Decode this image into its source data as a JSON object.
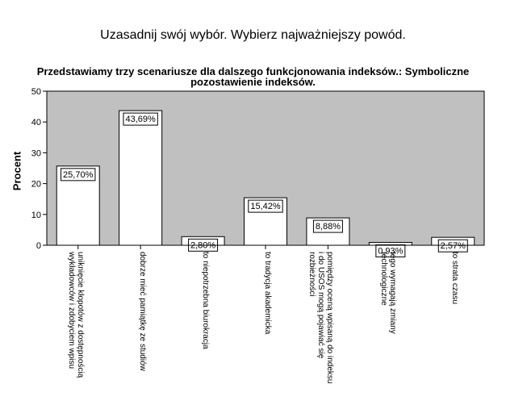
{
  "page_title": "Uzasadnij swój wybór. Wybierz najważniejszy powód.",
  "chart_data": {
    "type": "bar",
    "title": "Przedstawiamy trzy scenariusze dla dalszego funkcjonowania indeksów.: Symboliczne pozostawienie indeksów.",
    "ylabel": "Procent",
    "xlabel": "",
    "ylim": [
      0,
      50
    ],
    "yticks": [
      0,
      10,
      20,
      30,
      40,
      50
    ],
    "grid": false,
    "background": "#c0c0c0",
    "bar_color": "#ffffff",
    "categories": [
      "uniknięcie kłopotów z dostępnością wykładowców i zdobyciem wpisu",
      "dobrze mieć pamiątkę ze studiów",
      "to niepotrzebna biurokracja",
      "to tradycja akademicka",
      "pomiędzy oceną wpisaną do indeksu i do USOS mogą pojawiać się rozbieżności",
      "tego wymagają zmiany technologiczne",
      "to strata czasu"
    ],
    "values": [
      25.7,
      43.69,
      2.8,
      15.42,
      8.88,
      0.93,
      2.57
    ],
    "data_labels": [
      "25,70%",
      "43,69%",
      "2,80%",
      "15,42%",
      "8,88%",
      "0,93%",
      "2,57%"
    ]
  }
}
